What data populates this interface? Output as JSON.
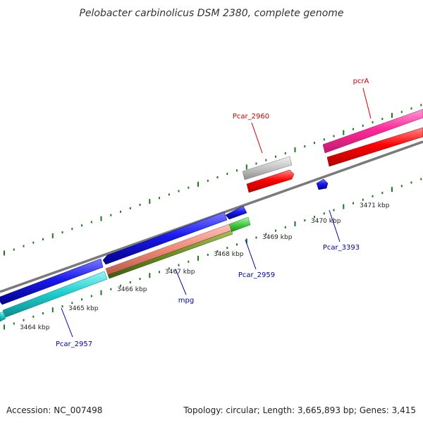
{
  "title": "Pelobacter carbinolicus DSM 2380, complete genome",
  "footer": {
    "accession": "Accession: NC_007498",
    "summary": "Topology: circular; Length: 3,665,893 bp; Genes: 3,415"
  },
  "ruler": {
    "tick_color": "#1a7a1a",
    "labels": [
      "3464 kbp",
      "3465 kbp",
      "3466 kbp",
      "3467 kbp",
      "3468 kbp",
      "3469 kbp",
      "3470 kbp",
      "3471 kbp"
    ]
  },
  "genes": [
    {
      "label": "pcrA",
      "color": "#cc0000",
      "strand": "forward"
    },
    {
      "label": "Pcar_2960",
      "color": "#cc0000",
      "strand": "forward"
    },
    {
      "label": "Pcar_3393",
      "color": "#0000aa",
      "strand": "reverse"
    },
    {
      "label": "Pcar_2959",
      "color": "#0000aa",
      "strand": "reverse"
    },
    {
      "label": "mpg",
      "color": "#0000aa",
      "strand": "reverse"
    },
    {
      "label": "Pcar_2957",
      "color": "#0000aa",
      "strand": "reverse"
    }
  ],
  "colors": {
    "backbone": "#7a7a7a",
    "forward_gene": "#ff0000",
    "forward_rna": "#ff3399",
    "pseudo": "#bbbbbb",
    "reverse_gene": "#1a1aee",
    "reverse_cds_alt": "#00cccc",
    "green_feature": "#44cc44",
    "olive_feature": "#6b8e23",
    "salmon_feature": "#ee8877"
  }
}
